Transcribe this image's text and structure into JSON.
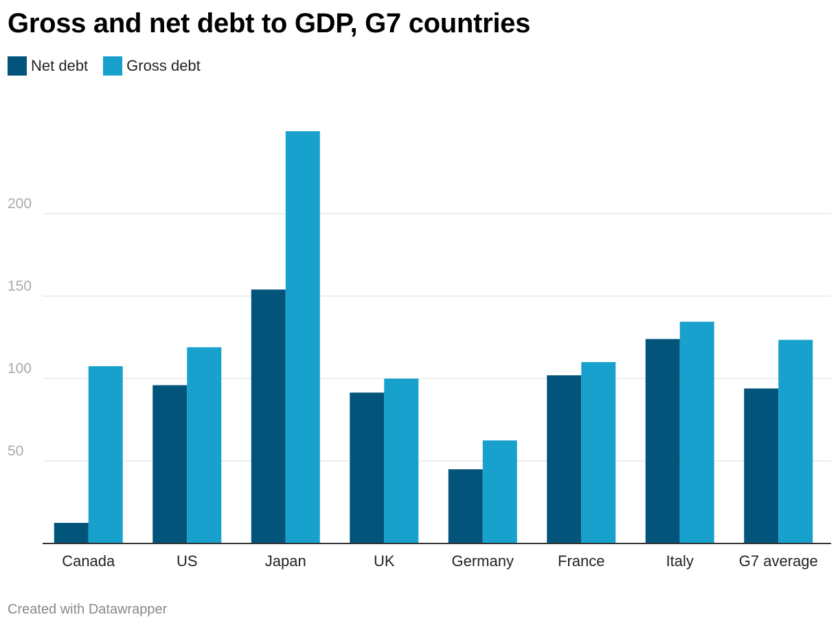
{
  "title": "Gross and net debt to GDP, G7 countries",
  "footer": "Created with Datawrapper",
  "colors": {
    "net": "#03547a",
    "gross": "#18a1cd",
    "grid": "#dddddd",
    "axis": "#333333",
    "tick": "#aaaaaa"
  },
  "legend": [
    {
      "label": "Net debt",
      "color": "#03547a"
    },
    {
      "label": "Gross debt",
      "color": "#18a1cd"
    }
  ],
  "chart_data": {
    "type": "bar",
    "title": "Gross and net debt to GDP, G7 countries",
    "xlabel": "",
    "ylabel": "",
    "ylim": [
      0,
      250
    ],
    "yticks": [
      50,
      100,
      150,
      200
    ],
    "grid": true,
    "legend_position": "top-left",
    "categories": [
      "Canada",
      "US",
      "Japan",
      "UK",
      "Germany",
      "France",
      "Italy",
      "G7 average"
    ],
    "series": [
      {
        "name": "Net debt",
        "values": [
          12.5,
          96,
          154,
          91.5,
          45,
          102,
          124,
          94
        ]
      },
      {
        "name": "Gross debt",
        "values": [
          107.5,
          119,
          250,
          100,
          62.5,
          110,
          134.5,
          123.5
        ]
      }
    ]
  }
}
